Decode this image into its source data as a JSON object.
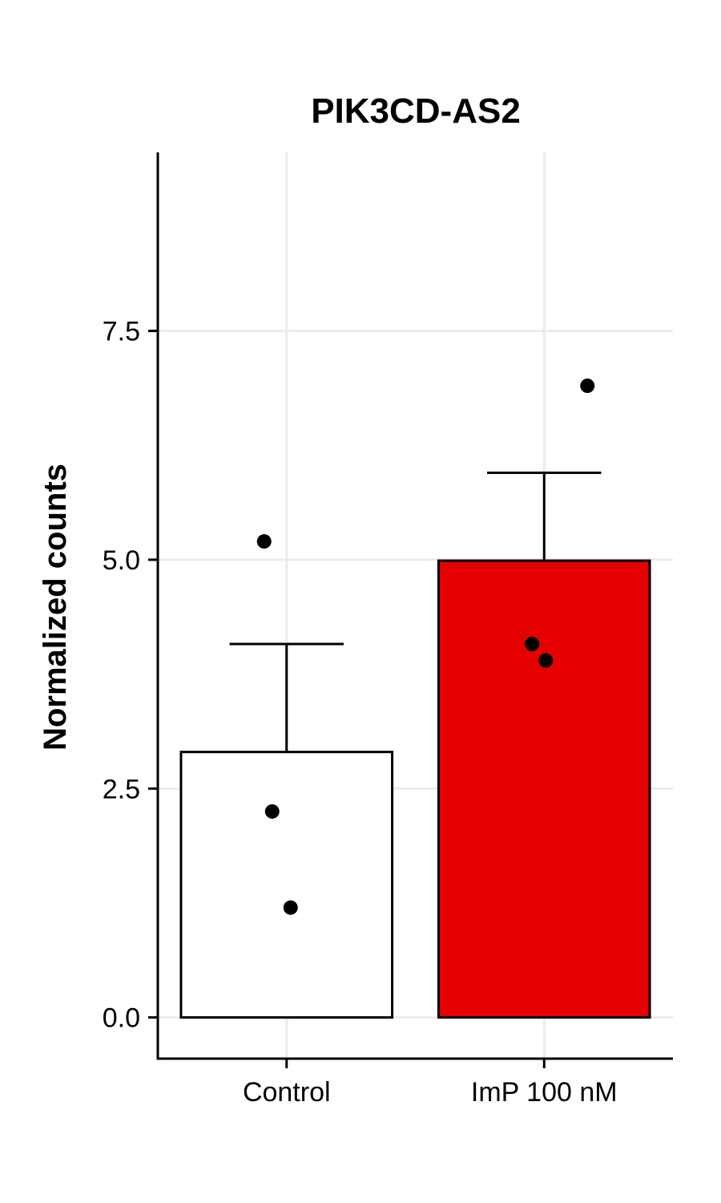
{
  "chart_data": {
    "type": "bar",
    "title": "PIK3CD-AS2",
    "xlabel": "",
    "ylabel": "Normalized counts",
    "categories": [
      "Control",
      "ImP 100 nM"
    ],
    "values": [
      2.9,
      4.99
    ],
    "error_upper": [
      4.08,
      5.95
    ],
    "bar_colors": [
      "#ffffff",
      "#e50000"
    ],
    "points": [
      {
        "category": "Control",
        "y": 5.2
      },
      {
        "category": "Control",
        "y": 2.25
      },
      {
        "category": "Control",
        "y": 1.2
      },
      {
        "category": "ImP 100 nM",
        "y": 6.9
      },
      {
        "category": "ImP 100 nM",
        "y": 4.08
      },
      {
        "category": "ImP 100 nM",
        "y": 3.9
      }
    ],
    "ylim": [
      -0.45,
      9.45
    ],
    "yticks": [
      0.0,
      2.5,
      5.0,
      7.5
    ],
    "ytick_labels": [
      "0.0",
      "2.5",
      "5.0",
      "7.5"
    ],
    "grid": true,
    "legend": "none"
  }
}
